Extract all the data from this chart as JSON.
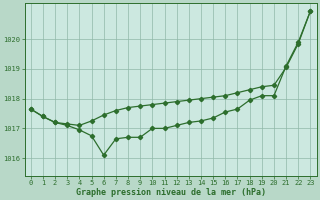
{
  "title": "Graphe pression niveau de la mer (hPa)",
  "background_color": "#c8e8c8",
  "plot_bg_color": "#d8f0e8",
  "grid_color": "#a8c8b8",
  "line_color": "#2d6e2d",
  "marker_color": "#2d6e2d",
  "xlim": [
    -0.5,
    23.5
  ],
  "ylim": [
    1015.4,
    1021.2
  ],
  "yticks": [
    1016,
    1017,
    1018,
    1019,
    1020
  ],
  "xticks": [
    0,
    1,
    2,
    3,
    4,
    5,
    6,
    7,
    8,
    9,
    10,
    11,
    12,
    13,
    14,
    15,
    16,
    17,
    18,
    19,
    20,
    21,
    22,
    23
  ],
  "series1_x": [
    0,
    1,
    2,
    3,
    4,
    5,
    6,
    7,
    8,
    9,
    10,
    11,
    12,
    13,
    14,
    15,
    16,
    17,
    18,
    19,
    20,
    21,
    22,
    23
  ],
  "series1_y": [
    1017.65,
    1017.4,
    1017.2,
    1017.15,
    1017.1,
    1017.25,
    1017.45,
    1017.6,
    1017.7,
    1017.75,
    1017.8,
    1017.85,
    1017.9,
    1017.95,
    1018.0,
    1018.05,
    1018.1,
    1018.2,
    1018.3,
    1018.4,
    1018.45,
    1019.05,
    1019.85,
    1020.95
  ],
  "series2_x": [
    0,
    1,
    2,
    3,
    4,
    5,
    6,
    7,
    8,
    9,
    10,
    11,
    12,
    13,
    14,
    15,
    16,
    17,
    18,
    19,
    20,
    21,
    22,
    23
  ],
  "series2_y": [
    1017.65,
    1017.4,
    1017.2,
    1017.1,
    1016.95,
    1016.75,
    1016.1,
    1016.65,
    1016.7,
    1016.7,
    1017.0,
    1017.0,
    1017.1,
    1017.2,
    1017.25,
    1017.35,
    1017.55,
    1017.65,
    1017.95,
    1018.1,
    1018.1,
    1019.1,
    1019.9,
    1020.95
  ]
}
